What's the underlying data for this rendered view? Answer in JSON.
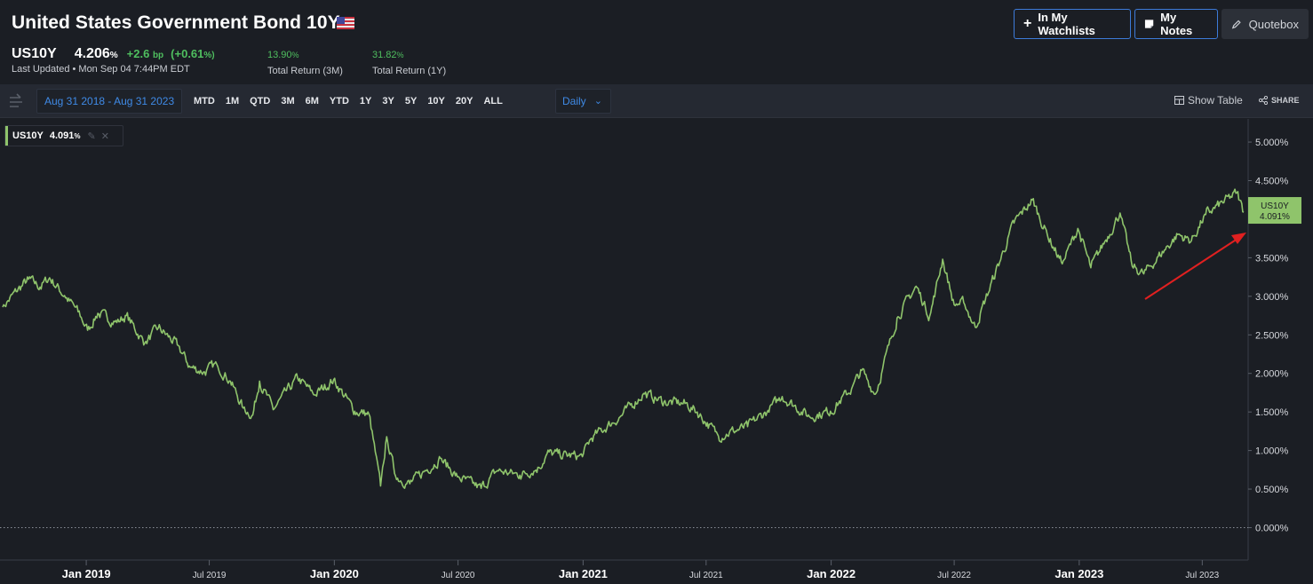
{
  "header": {
    "title": "United States Government Bond 10Y",
    "symbol": "US10Y",
    "price": "4.206",
    "price_unit": "%",
    "change": "+2.6",
    "change_unit": "bp",
    "change_pct": "(+0.61",
    "change_pct_unit": "%)",
    "last_updated": "Last Updated • Mon Sep 04 7:44PM EDT",
    "returns": [
      {
        "value": "13.90",
        "unit": "%",
        "label": "Total Return (3M)"
      },
      {
        "value": "31.82",
        "unit": "%",
        "label": "Total Return (1Y)"
      }
    ],
    "buttons": {
      "watchlists": "In My Watchlists",
      "notes": "My Notes",
      "quotebox": "Quotebox"
    }
  },
  "toolbar": {
    "date_range": "Aug 31 2018 - Aug 31 2023",
    "periods": [
      "MTD",
      "1M",
      "QTD",
      "3M",
      "6M",
      "YTD",
      "1Y",
      "3Y",
      "5Y",
      "10Y",
      "20Y",
      "ALL"
    ],
    "frequency": "Daily",
    "show_table": "Show Table",
    "share": "SHARE"
  },
  "legend": {
    "name": "US10Y",
    "value": "4.091",
    "unit": "%"
  },
  "colors": {
    "line": "#8fc46b",
    "background": "#1b1e24",
    "accent": "#3f8ae6",
    "positive": "#4fbf5f",
    "annotation_arrow": "#e02020"
  },
  "chart_data": {
    "type": "line",
    "series": [
      {
        "name": "US10Y",
        "points": [
          [
            "2018-08-31",
            2.86
          ],
          [
            "2018-09-20",
            3.06
          ],
          [
            "2018-10-08",
            3.22
          ],
          [
            "2018-10-25",
            3.12
          ],
          [
            "2018-11-08",
            3.24
          ],
          [
            "2018-11-30",
            3.01
          ],
          [
            "2018-12-20",
            2.8
          ],
          [
            "2019-01-03",
            2.56
          ],
          [
            "2019-01-18",
            2.78
          ],
          [
            "2019-02-15",
            2.66
          ],
          [
            "2019-03-01",
            2.75
          ],
          [
            "2019-03-28",
            2.39
          ],
          [
            "2019-04-17",
            2.59
          ],
          [
            "2019-05-15",
            2.37
          ],
          [
            "2019-06-03",
            2.08
          ],
          [
            "2019-06-24",
            2.02
          ],
          [
            "2019-07-12",
            2.12
          ],
          [
            "2019-08-01",
            1.9
          ],
          [
            "2019-08-20",
            1.55
          ],
          [
            "2019-09-03",
            1.46
          ],
          [
            "2019-09-13",
            1.9
          ],
          [
            "2019-10-03",
            1.53
          ],
          [
            "2019-11-08",
            1.94
          ],
          [
            "2019-12-03",
            1.72
          ],
          [
            "2019-12-31",
            1.92
          ],
          [
            "2020-01-31",
            1.51
          ],
          [
            "2020-02-21",
            1.47
          ],
          [
            "2020-03-09",
            0.54
          ],
          [
            "2020-03-18",
            1.18
          ],
          [
            "2020-03-31",
            0.67
          ],
          [
            "2020-04-21",
            0.57
          ],
          [
            "2020-06-05",
            0.9
          ],
          [
            "2020-06-30",
            0.66
          ],
          [
            "2020-08-04",
            0.51
          ],
          [
            "2020-08-28",
            0.74
          ],
          [
            "2020-09-30",
            0.68
          ],
          [
            "2020-10-28",
            0.78
          ],
          [
            "2020-11-09",
            0.96
          ],
          [
            "2020-12-31",
            0.92
          ],
          [
            "2021-01-12",
            1.15
          ],
          [
            "2021-02-26",
            1.45
          ],
          [
            "2021-03-31",
            1.74
          ],
          [
            "2021-04-30",
            1.63
          ],
          [
            "2021-05-31",
            1.61
          ],
          [
            "2021-06-18",
            1.5
          ],
          [
            "2021-07-19",
            1.19
          ],
          [
            "2021-08-31",
            1.31
          ],
          [
            "2021-09-30",
            1.52
          ],
          [
            "2021-10-21",
            1.7
          ],
          [
            "2021-11-30",
            1.44
          ],
          [
            "2021-12-31",
            1.51
          ],
          [
            "2022-01-31",
            1.8
          ],
          [
            "2022-02-15",
            2.04
          ],
          [
            "2022-03-07",
            1.73
          ],
          [
            "2022-04-08",
            2.72
          ],
          [
            "2022-05-06",
            3.13
          ],
          [
            "2022-05-26",
            2.74
          ],
          [
            "2022-06-14",
            3.48
          ],
          [
            "2022-07-01",
            2.89
          ],
          [
            "2022-07-15",
            2.92
          ],
          [
            "2022-08-01",
            2.6
          ],
          [
            "2022-09-27",
            3.95
          ],
          [
            "2022-10-24",
            4.25
          ],
          [
            "2022-11-15",
            3.8
          ],
          [
            "2022-12-07",
            3.42
          ],
          [
            "2022-12-30",
            3.88
          ],
          [
            "2023-01-18",
            3.37
          ],
          [
            "2023-03-02",
            4.08
          ],
          [
            "2023-03-20",
            3.39
          ],
          [
            "2023-04-06",
            3.29
          ],
          [
            "2023-05-26",
            3.8
          ],
          [
            "2023-06-15",
            3.72
          ],
          [
            "2023-07-06",
            4.06
          ],
          [
            "2023-08-21",
            4.34
          ],
          [
            "2023-08-31",
            4.09
          ]
        ]
      }
    ],
    "y_ticks": [
      "5.000%",
      "4.500%",
      "4.000%",
      "3.500%",
      "3.000%",
      "2.500%",
      "2.000%",
      "1.500%",
      "1.000%",
      "0.500%",
      "0.000%"
    ],
    "x_ticks": [
      "Jan 2019",
      "Jul 2019",
      "Jan 2020",
      "Jul 2020",
      "Jan 2021",
      "Jul 2021",
      "Jan 2022",
      "Jul 2022",
      "Jan 2023",
      "Jul 2023"
    ],
    "last_label": {
      "name": "US10Y",
      "value": "4.091%"
    },
    "x_range": [
      "2018-08-31",
      "2023-08-31"
    ],
    "y_range": [
      -0.42,
      5.3
    ]
  }
}
